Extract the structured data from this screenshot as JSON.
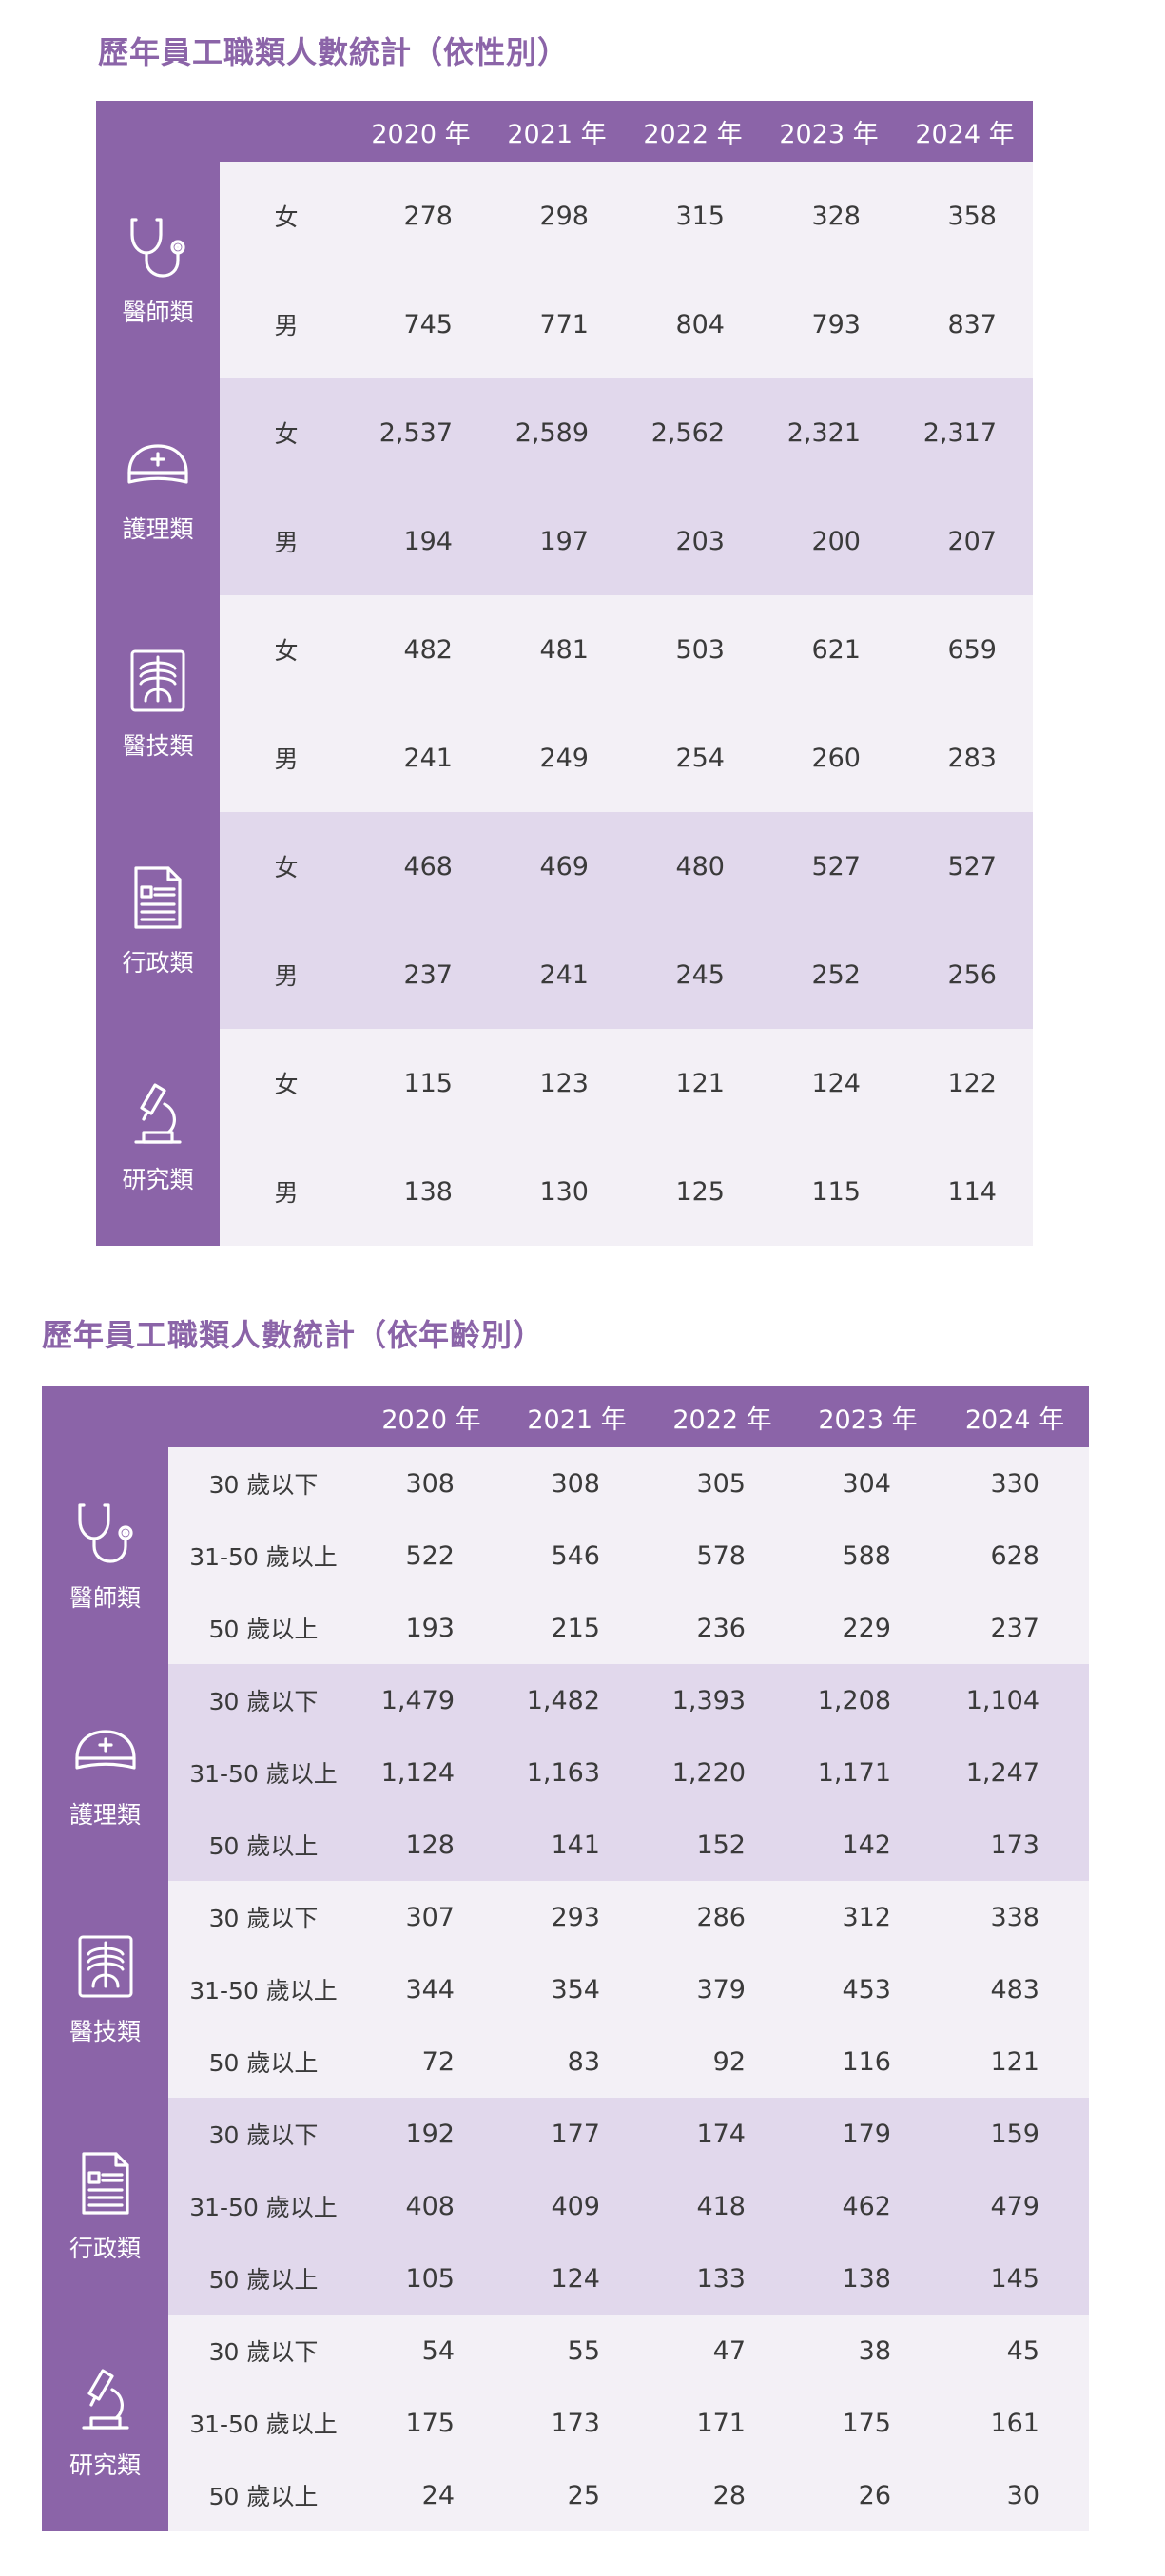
{
  "table1": {
    "title": "歷年員工職類人數統計（依性別）",
    "years": [
      "2020 年",
      "2021 年",
      "2022 年",
      "2023 年",
      "2024 年"
    ],
    "groups": [
      {
        "category": "醫師類",
        "icon": "stethoscope-icon",
        "rows": [
          {
            "label": "女",
            "values": [
              "278",
              "298",
              "315",
              "328",
              "358"
            ]
          },
          {
            "label": "男",
            "values": [
              "745",
              "771",
              "804",
              "793",
              "837"
            ]
          }
        ]
      },
      {
        "category": "護理類",
        "icon": "nurse-cap-icon",
        "rows": [
          {
            "label": "女",
            "values": [
              "2,537",
              "2,589",
              "2,562",
              "2,321",
              "2,317"
            ]
          },
          {
            "label": "男",
            "values": [
              "194",
              "197",
              "203",
              "200",
              "207"
            ]
          }
        ]
      },
      {
        "category": "醫技類",
        "icon": "xray-icon",
        "rows": [
          {
            "label": "女",
            "values": [
              "482",
              "481",
              "503",
              "621",
              "659"
            ]
          },
          {
            "label": "男",
            "values": [
              "241",
              "249",
              "254",
              "260",
              "283"
            ]
          }
        ]
      },
      {
        "category": "行政類",
        "icon": "document-icon",
        "rows": [
          {
            "label": "女",
            "values": [
              "468",
              "469",
              "480",
              "527",
              "527"
            ]
          },
          {
            "label": "男",
            "values": [
              "237",
              "241",
              "245",
              "252",
              "256"
            ]
          }
        ]
      },
      {
        "category": "研究類",
        "icon": "microscope-icon",
        "rows": [
          {
            "label": "女",
            "values": [
              "115",
              "123",
              "121",
              "124",
              "122"
            ]
          },
          {
            "label": "男",
            "values": [
              "138",
              "130",
              "125",
              "115",
              "114"
            ]
          }
        ]
      }
    ]
  },
  "table2": {
    "title": "歷年員工職類人數統計（依年齡別）",
    "years": [
      "2020 年",
      "2021 年",
      "2022 年",
      "2023 年",
      "2024 年"
    ],
    "groups": [
      {
        "category": "醫師類",
        "icon": "stethoscope-icon",
        "rows": [
          {
            "label": "30 歲以下",
            "values": [
              "308",
              "308",
              "305",
              "304",
              "330"
            ]
          },
          {
            "label": "31-50 歲以上",
            "values": [
              "522",
              "546",
              "578",
              "588",
              "628"
            ]
          },
          {
            "label": "50 歲以上",
            "values": [
              "193",
              "215",
              "236",
              "229",
              "237"
            ]
          }
        ]
      },
      {
        "category": "護理類",
        "icon": "nurse-cap-icon",
        "rows": [
          {
            "label": "30 歲以下",
            "values": [
              "1,479",
              "1,482",
              "1,393",
              "1,208",
              "1,104"
            ]
          },
          {
            "label": "31-50 歲以上",
            "values": [
              "1,124",
              "1,163",
              "1,220",
              "1,171",
              "1,247"
            ]
          },
          {
            "label": "50 歲以上",
            "values": [
              "128",
              "141",
              "152",
              "142",
              "173"
            ]
          }
        ]
      },
      {
        "category": "醫技類",
        "icon": "xray-icon",
        "rows": [
          {
            "label": "30 歲以下",
            "values": [
              "307",
              "293",
              "286",
              "312",
              "338"
            ]
          },
          {
            "label": "31-50 歲以上",
            "values": [
              "344",
              "354",
              "379",
              "453",
              "483"
            ]
          },
          {
            "label": "50 歲以上",
            "values": [
              "72",
              "83",
              "92",
              "116",
              "121"
            ]
          }
        ]
      },
      {
        "category": "行政類",
        "icon": "document-icon",
        "rows": [
          {
            "label": "30 歲以下",
            "values": [
              "192",
              "177",
              "174",
              "179",
              "159"
            ]
          },
          {
            "label": "31-50 歲以上",
            "values": [
              "408",
              "409",
              "418",
              "462",
              "479"
            ]
          },
          {
            "label": "50 歲以上",
            "values": [
              "105",
              "124",
              "133",
              "138",
              "145"
            ]
          }
        ]
      },
      {
        "category": "研究類",
        "icon": "microscope-icon",
        "rows": [
          {
            "label": "30 歲以下",
            "values": [
              "54",
              "55",
              "47",
              "38",
              "45"
            ]
          },
          {
            "label": "31-50 歲以上",
            "values": [
              "175",
              "173",
              "171",
              "175",
              "161"
            ]
          },
          {
            "label": "50 歲以上",
            "values": [
              "24",
              "25",
              "28",
              "26",
              "30"
            ]
          }
        ]
      }
    ]
  }
}
